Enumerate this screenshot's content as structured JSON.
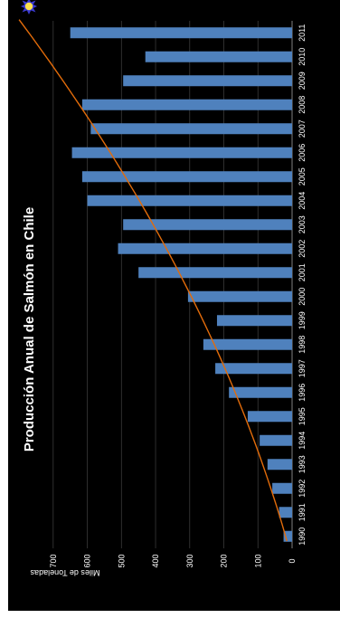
{
  "chart_data": {
    "type": "bar",
    "title": "Producción Anual de Salmón en Chile",
    "xlabel": "",
    "ylabel": "Miles de Toneladas",
    "categories": [
      "1990",
      "1991",
      "1992",
      "1993",
      "1994",
      "1995",
      "1996",
      "1997",
      "1998",
      "1999",
      "2000",
      "2001",
      "2002",
      "2003",
      "2004",
      "2005",
      "2006",
      "2007",
      "2008",
      "2009",
      "2010",
      "2011"
    ],
    "values": [
      25,
      38,
      58,
      72,
      95,
      130,
      185,
      225,
      260,
      220,
      305,
      450,
      510,
      495,
      600,
      615,
      645,
      590,
      615,
      495,
      430,
      650
    ],
    "ylim": [
      0,
      700
    ],
    "yticks": [
      0,
      100,
      200,
      300,
      400,
      500,
      600,
      700
    ],
    "grid": true,
    "orientation": "rotated-90-ccw",
    "bar_color": "#4f81bd",
    "trendline_color": "#e36c0a",
    "background_color": "#000000",
    "trendline": {
      "type": "polynomial",
      "start_value": 15,
      "end_value": 800
    }
  }
}
